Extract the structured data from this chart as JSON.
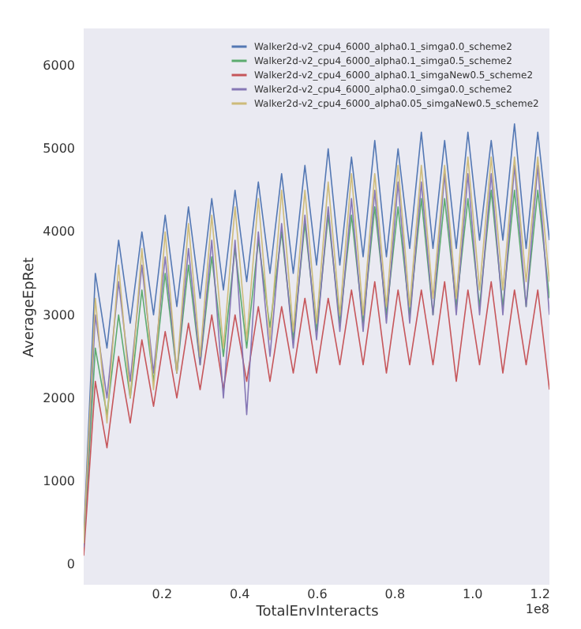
{
  "chart_data": {
    "type": "line",
    "xlabel": "TotalEnvInteracts",
    "ylabel": "AverageEpRet",
    "annotations": [
      "1e8"
    ],
    "x": [
      0,
      0.03,
      0.06,
      0.09,
      0.12,
      0.15,
      0.18,
      0.21,
      0.24,
      0.27,
      0.3,
      0.33,
      0.36,
      0.39,
      0.42,
      0.45,
      0.48,
      0.51,
      0.54,
      0.57,
      0.6,
      0.63,
      0.66,
      0.69,
      0.72,
      0.75,
      0.78,
      0.81,
      0.84,
      0.87,
      0.9,
      0.93,
      0.96,
      0.99,
      1.02,
      1.05,
      1.08,
      1.11,
      1.14,
      1.17,
      1.2
    ],
    "xlim": [
      0,
      1.2
    ],
    "xticks": [
      0.2,
      0.4,
      0.6,
      0.8,
      {
        "value": 1,
        "label": "1.0"
      },
      1.2
    ],
    "ylim": [
      -250,
      6450
    ],
    "yticks": [
      0,
      1000,
      2000,
      3000,
      4000,
      5000,
      6000
    ],
    "legend": "top right",
    "series": [
      {
        "name": "Walker2d-v2_cpu4_6000_alpha0.1_simga0.0_scheme2",
        "color": "#4c72b0",
        "values": [
          300,
          3500,
          2600,
          3900,
          2900,
          4000,
          3000,
          4200,
          3100,
          4300,
          3200,
          4400,
          3300,
          4500,
          3400,
          4600,
          3500,
          4700,
          3500,
          4800,
          3600,
          5000,
          3600,
          4900,
          3700,
          5100,
          3700,
          5000,
          3800,
          5200,
          3800,
          5100,
          3800,
          5200,
          3900,
          5100,
          3900,
          5300,
          3800,
          5200,
          3900
        ]
      },
      {
        "name": "Walker2d-v2_cpu4_6000_alpha0.1_simga0.5_scheme2",
        "color": "#55a868",
        "values": [
          200,
          2600,
          1800,
          3000,
          2000,
          3300,
          2200,
          3500,
          2300,
          3600,
          2400,
          3700,
          2500,
          3800,
          2600,
          3900,
          2850,
          4000,
          2700,
          4100,
          2800,
          4200,
          2900,
          4200,
          2900,
          4300,
          3000,
          4300,
          3000,
          4400,
          3000,
          4400,
          3100,
          4400,
          3100,
          4500,
          3100,
          4500,
          3100,
          4500,
          3200
        ]
      },
      {
        "name": "Walker2d-v2_cpu4_6000_alpha0.1_simgaNew0.5_scheme2",
        "color": "#c44e52",
        "values": [
          100,
          2200,
          1400,
          2500,
          1700,
          2700,
          1900,
          2800,
          2000,
          2900,
          2100,
          3000,
          2100,
          3000,
          2200,
          3100,
          2200,
          3100,
          2300,
          3200,
          2300,
          3200,
          2400,
          3300,
          2400,
          3400,
          2300,
          3300,
          2400,
          3300,
          2400,
          3400,
          2200,
          3300,
          2400,
          3400,
          2300,
          3300,
          2400,
          3300,
          2100
        ]
      },
      {
        "name": "Walker2d-v2_cpu4_6000_alpha0.0_simga0.0_scheme2",
        "color": "#8172b2",
        "values": [
          200,
          3000,
          2000,
          3400,
          2200,
          3600,
          2300,
          3700,
          2300,
          3800,
          2400,
          3900,
          2000,
          3900,
          1800,
          4000,
          2500,
          4100,
          2600,
          4200,
          2700,
          4300,
          2800,
          4400,
          2800,
          4500,
          2900,
          4600,
          2900,
          4600,
          3000,
          4700,
          3000,
          4700,
          3000,
          4700,
          3000,
          4800,
          3100,
          4800,
          3000
        ]
      },
      {
        "name": "Walker2d-v2_cpu4_6000_alpha0.05_simgaNew0.5_scheme2",
        "color": "#ccb974",
        "values": [
          250,
          3200,
          1700,
          3600,
          2000,
          3800,
          2100,
          4000,
          2300,
          4100,
          2500,
          4200,
          2600,
          4300,
          2700,
          4400,
          2700,
          4500,
          2800,
          4500,
          2900,
          4600,
          3000,
          4700,
          3000,
          4700,
          3100,
          4800,
          3100,
          4800,
          3200,
          4800,
          3200,
          4900,
          3300,
          4900,
          3300,
          4900,
          3400,
          4900,
          3400
        ]
      }
    ]
  }
}
